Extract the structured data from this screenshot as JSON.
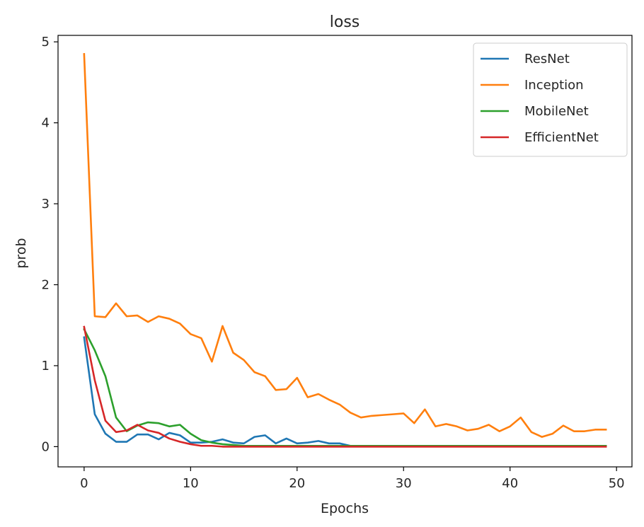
{
  "chart_data": {
    "type": "line",
    "title": "loss",
    "xlabel": "Epochs",
    "ylabel": "prob",
    "xlim": [
      -2.45,
      51.45
    ],
    "ylim": [
      -0.25,
      5.08
    ],
    "xticks": [
      0,
      10,
      20,
      30,
      40,
      50
    ],
    "yticks": [
      0,
      1,
      2,
      3,
      4,
      5
    ],
    "grid": false,
    "legend_position": "top-right",
    "x": [
      0,
      1,
      2,
      3,
      4,
      5,
      6,
      7,
      8,
      9,
      10,
      11,
      12,
      13,
      14,
      15,
      16,
      17,
      18,
      19,
      20,
      21,
      22,
      23,
      24,
      25,
      26,
      27,
      28,
      29,
      30,
      31,
      32,
      33,
      34,
      35,
      36,
      37,
      38,
      39,
      40,
      41,
      42,
      43,
      44,
      45,
      46,
      47,
      48,
      49
    ],
    "series": [
      {
        "name": "ResNet",
        "color": "#1f77b4",
        "values": [
          1.35,
          0.4,
          0.16,
          0.06,
          0.06,
          0.15,
          0.15,
          0.09,
          0.17,
          0.14,
          0.05,
          0.05,
          0.06,
          0.09,
          0.05,
          0.04,
          0.12,
          0.14,
          0.04,
          0.1,
          0.04,
          0.05,
          0.07,
          0.04,
          0.04,
          0.01,
          0.01,
          0.01,
          0.01,
          0.01,
          0.01,
          0.01,
          0.01,
          0.01,
          0.01,
          0.01,
          0.01,
          0.01,
          0.01,
          0.01,
          0.01,
          0.01,
          0.01,
          0.01,
          0.01,
          0.01,
          0.01,
          0.01,
          0.01,
          0.01
        ]
      },
      {
        "name": "Inception",
        "color": "#ff7f0e",
        "values": [
          4.85,
          1.61,
          1.6,
          1.77,
          1.61,
          1.62,
          1.54,
          1.61,
          1.58,
          1.52,
          1.39,
          1.34,
          1.05,
          1.49,
          1.16,
          1.07,
          0.92,
          0.87,
          0.7,
          0.71,
          0.85,
          0.61,
          0.65,
          0.58,
          0.52,
          0.42,
          0.36,
          0.38,
          0.39,
          0.4,
          0.41,
          0.29,
          0.46,
          0.25,
          0.28,
          0.25,
          0.2,
          0.22,
          0.27,
          0.19,
          0.25,
          0.36,
          0.18,
          0.12,
          0.16,
          0.26,
          0.19,
          0.19,
          0.21,
          0.21
        ]
      },
      {
        "name": "MobileNet",
        "color": "#2ca02c",
        "values": [
          1.45,
          1.19,
          0.87,
          0.36,
          0.19,
          0.26,
          0.3,
          0.29,
          0.25,
          0.27,
          0.16,
          0.08,
          0.05,
          0.03,
          0.02,
          0.01,
          0.01,
          0.01,
          0.01,
          0.01,
          0.01,
          0.01,
          0.01,
          0.01,
          0.01,
          0.01,
          0.01,
          0.01,
          0.01,
          0.01,
          0.01,
          0.01,
          0.01,
          0.01,
          0.01,
          0.01,
          0.01,
          0.01,
          0.01,
          0.01,
          0.01,
          0.01,
          0.01,
          0.01,
          0.01,
          0.01,
          0.01,
          0.01,
          0.01,
          0.01
        ]
      },
      {
        "name": "EfficientNet",
        "color": "#d62728",
        "values": [
          1.48,
          0.82,
          0.32,
          0.18,
          0.2,
          0.27,
          0.2,
          0.17,
          0.1,
          0.06,
          0.03,
          0.01,
          0.01,
          0.0,
          0.0,
          0.0,
          0.0,
          0.0,
          0.0,
          0.0,
          0.0,
          0.0,
          0.0,
          0.0,
          0.0,
          0.0,
          0.0,
          0.0,
          0.0,
          0.0,
          0.0,
          0.0,
          0.0,
          0.0,
          0.0,
          0.0,
          0.0,
          0.0,
          0.0,
          0.0,
          0.0,
          0.0,
          0.0,
          0.0,
          0.0,
          0.0,
          0.0,
          0.0,
          0.0,
          0.0
        ]
      }
    ]
  }
}
